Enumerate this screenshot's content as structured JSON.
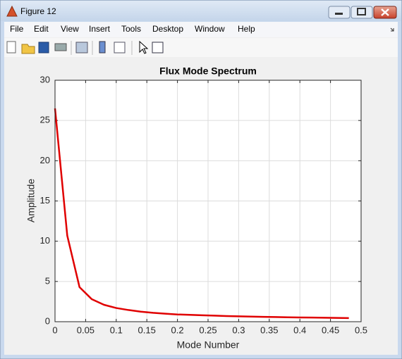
{
  "window": {
    "title": "Figure 12",
    "menu": [
      "File",
      "Edit",
      "View",
      "Insert",
      "Tools",
      "Desktop",
      "Window",
      "Help"
    ]
  },
  "chart_data": {
    "type": "line",
    "title": "Flux Mode Spectrum",
    "x_label": "Mode Number",
    "y_label": "Amplitude",
    "x": [
      0,
      0.02,
      0.04,
      0.06,
      0.08,
      0.1,
      0.12,
      0.14,
      0.16,
      0.18,
      0.2,
      0.22,
      0.24,
      0.26,
      0.28,
      0.3,
      0.32,
      0.34,
      0.36,
      0.38,
      0.4,
      0.42,
      0.44,
      0.46,
      0.48
    ],
    "series": [
      {
        "color": "#e00000",
        "values": [
          26.5,
          10.7,
          4.3,
          2.8,
          2.1,
          1.7,
          1.45,
          1.25,
          1.1,
          1.0,
          0.9,
          0.85,
          0.8,
          0.75,
          0.7,
          0.67,
          0.63,
          0.6,
          0.58,
          0.55,
          0.53,
          0.51,
          0.49,
          0.47,
          0.45
        ]
      }
    ],
    "xlim": [
      0,
      0.5
    ],
    "xticks": [
      0,
      0.05,
      0.1,
      0.15,
      0.2,
      0.25,
      0.3,
      0.35,
      0.4,
      0.45,
      0.5
    ],
    "ylim": [
      0,
      30
    ],
    "yticks": [
      0,
      5,
      10,
      15,
      20,
      25,
      30
    ],
    "grid": true
  }
}
